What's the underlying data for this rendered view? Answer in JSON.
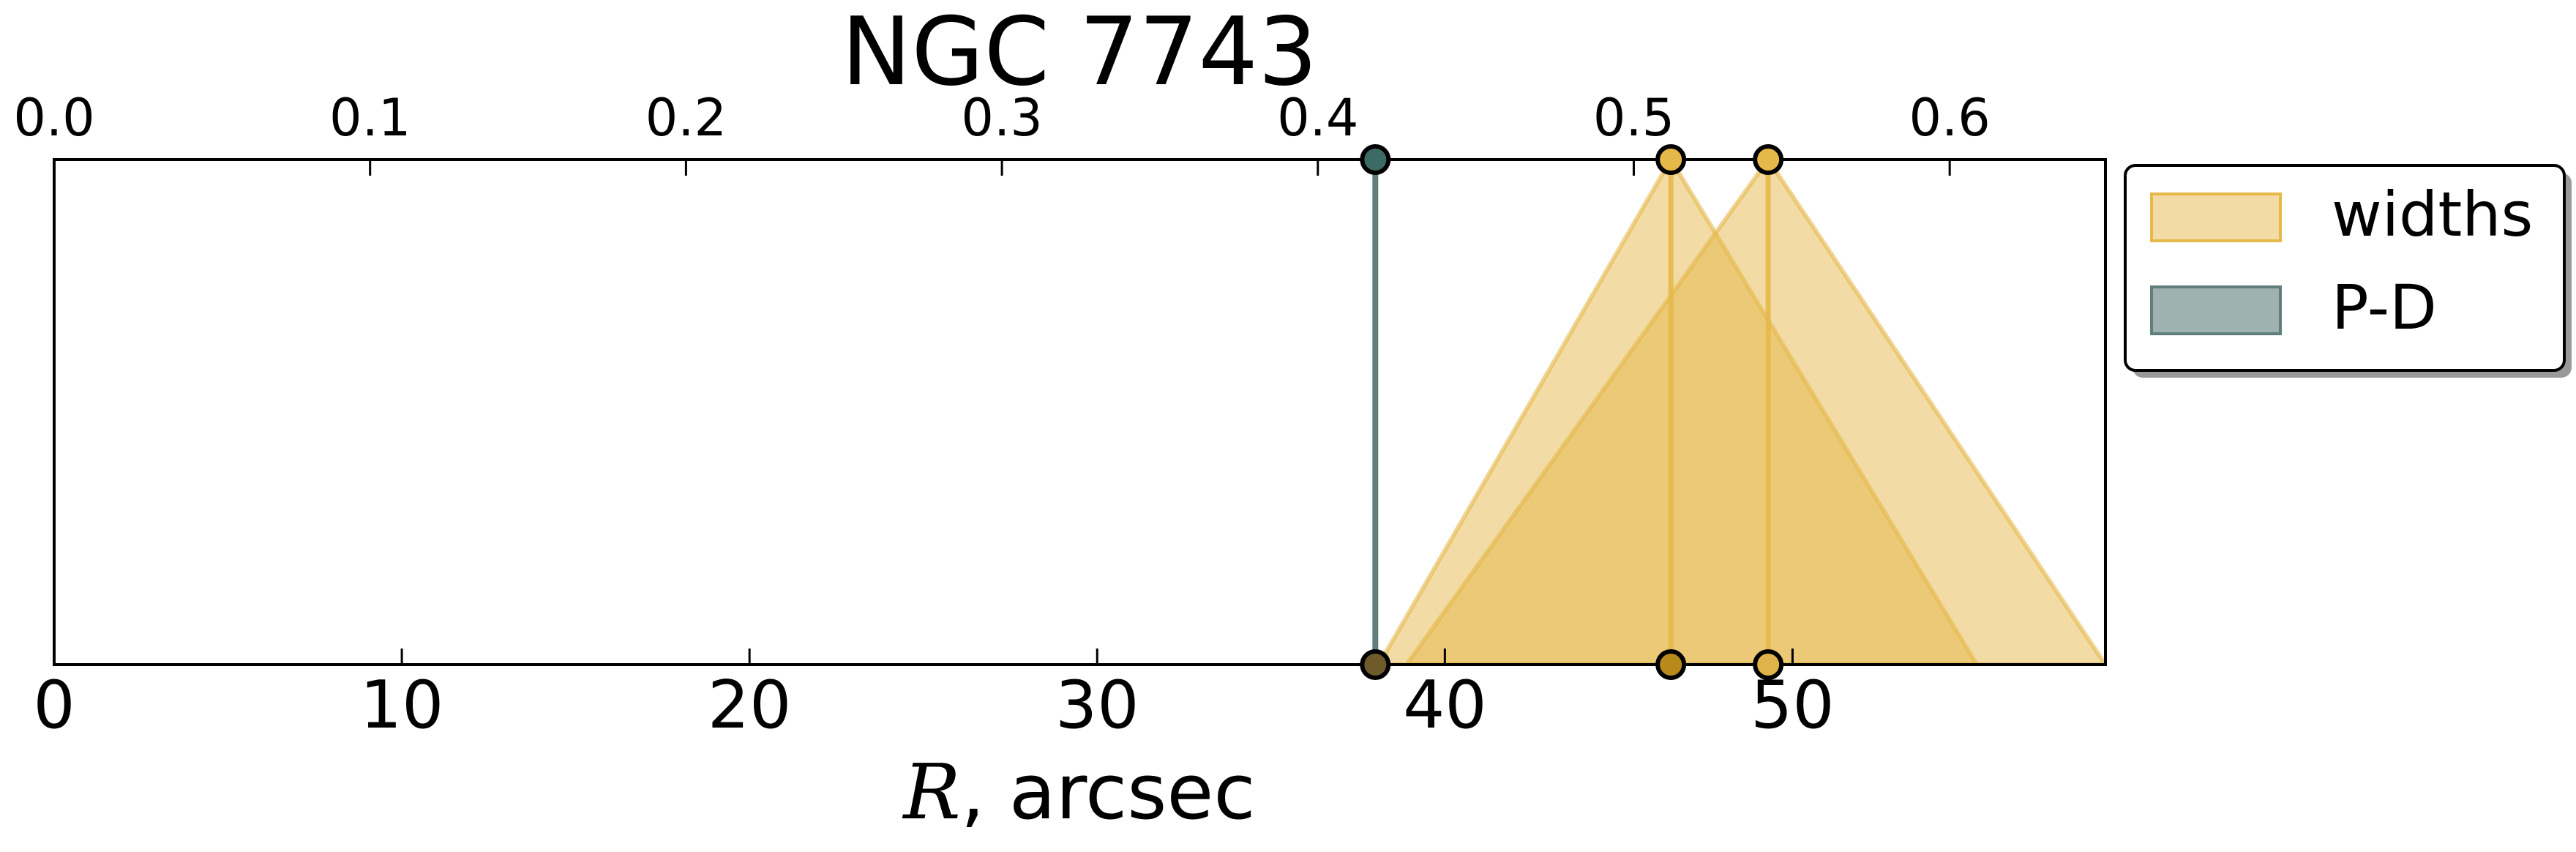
{
  "chart_data": {
    "type": "area",
    "title": "NGC 7743",
    "xlabel_symbol": "R",
    "xlabel_unit": ", arcsec",
    "xlim": [
      0,
      59
    ],
    "xticks": [
      0,
      10,
      20,
      30,
      40,
      50
    ],
    "xtick_labels": [
      "0",
      "10",
      "20",
      "30",
      "40",
      "50"
    ],
    "top_axis": {
      "xlim": [
        0,
        0.6493
      ],
      "xticks": [
        0.0,
        0.1,
        0.2,
        0.3,
        0.4,
        0.5,
        0.6
      ],
      "xtick_labels": [
        "0.0",
        "0.1",
        "0.2",
        "0.3",
        "0.4",
        "0.5",
        "0.6"
      ]
    },
    "legend": {
      "placement": "outside-right",
      "entries": [
        {
          "label": "widths",
          "color": "#e5b84a"
        },
        {
          "label": "P-D",
          "color": "#5f7f7c"
        }
      ]
    },
    "series": [
      {
        "name": "widths",
        "color": "#e5b84a",
        "markers": [
          {
            "center": 46.5,
            "left": 38.1,
            "right": 55.3
          },
          {
            "center": 49.3,
            "left": 38.9,
            "right": 59.0
          }
        ]
      },
      {
        "name": "P-D",
        "color": "#5f7f7c",
        "markers": [
          {
            "center": 38.0
          }
        ]
      }
    ],
    "grid": false
  }
}
